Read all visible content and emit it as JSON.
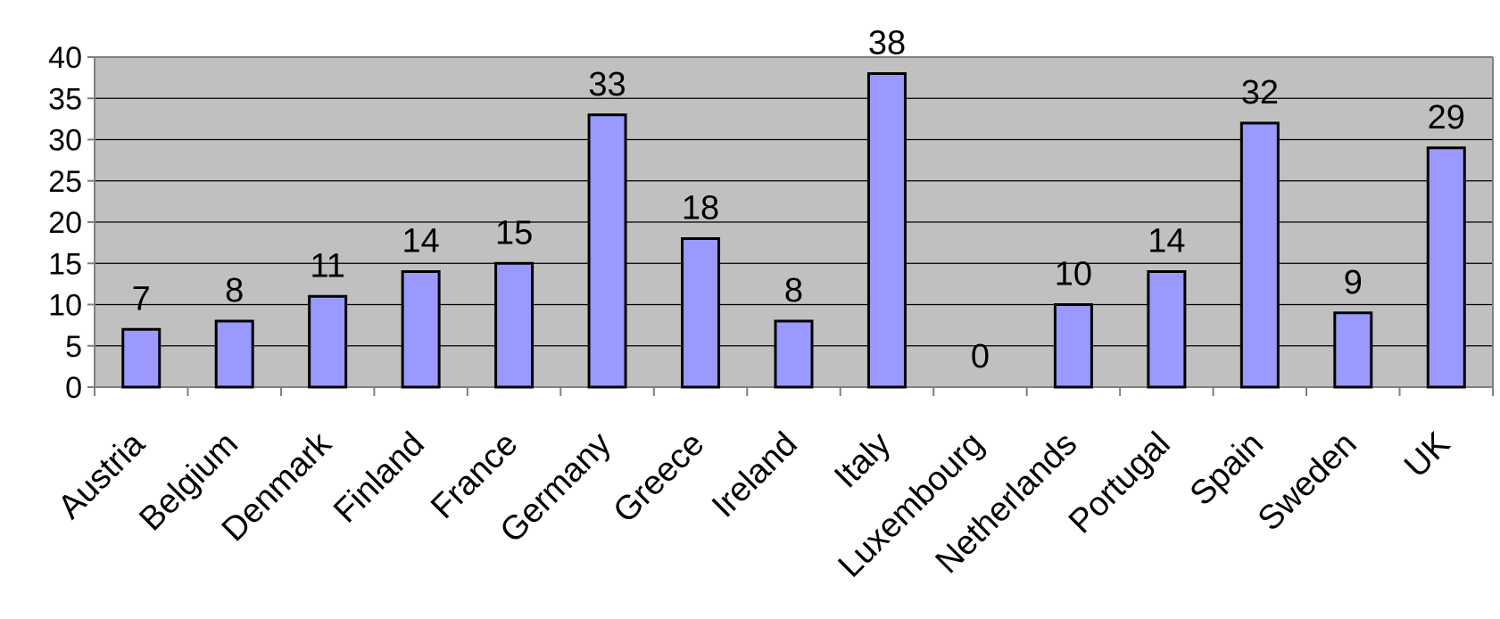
{
  "chart_data": {
    "type": "bar",
    "title": "",
    "xlabel": "",
    "ylabel": "",
    "categories": [
      "Austria",
      "Belgium",
      "Denmark",
      "Finland",
      "France",
      "Germany",
      "Greece",
      "Ireland",
      "Italy",
      "Luxembourg",
      "Netherlands",
      "Portugal",
      "Spain",
      "Sweden",
      "UK"
    ],
    "values": [
      7,
      8,
      11,
      14,
      15,
      33,
      18,
      8,
      38,
      0,
      10,
      14,
      32,
      9,
      29
    ],
    "ylim": [
      0,
      40
    ],
    "yticks": [
      "0",
      "5",
      "10",
      "15",
      "20",
      "25",
      "30",
      "35",
      "40"
    ],
    "grid": true,
    "legend": "none",
    "colors": {
      "bar_fill": "#9999ff",
      "bar_stroke": "#000000",
      "plot_background": "#c0c0c0",
      "gridline": "#000000",
      "axis": "#808080"
    }
  }
}
